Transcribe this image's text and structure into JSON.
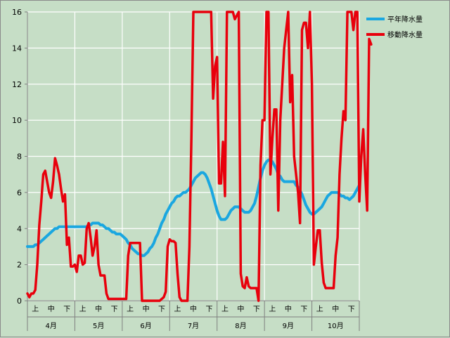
{
  "chart_data": {
    "type": "line",
    "ylim": [
      0,
      16
    ],
    "yticks": [
      0,
      2,
      4,
      6,
      8,
      10,
      12,
      14,
      16
    ],
    "grid": true,
    "legend_position": "right",
    "dekad_labels": [
      "上",
      "中",
      "下"
    ],
    "months": [
      "4月",
      "5月",
      "6月",
      "7月",
      "8月",
      "9月",
      "10月"
    ],
    "series": [
      {
        "name": "平年降水量",
        "color": "#1aa7e0",
        "values": [
          3.0,
          3.0,
          3.0,
          3.0,
          3.1,
          3.1,
          3.2,
          3.3,
          3.4,
          3.5,
          3.6,
          3.7,
          3.8,
          3.9,
          4.0,
          4.0,
          4.1,
          4.1,
          4.1,
          4.1,
          4.1,
          4.1,
          4.1,
          4.1,
          4.1,
          4.1,
          4.1,
          4.1,
          4.1,
          4.1,
          4.1,
          4.2,
          4.2,
          4.3,
          4.3,
          4.3,
          4.3,
          4.2,
          4.2,
          4.1,
          4.0,
          4.0,
          3.9,
          3.8,
          3.8,
          3.7,
          3.7,
          3.7,
          3.6,
          3.5,
          3.4,
          3.2,
          3.1,
          2.9,
          2.8,
          2.7,
          2.6,
          2.6,
          2.5,
          2.5,
          2.6,
          2.7,
          2.9,
          3.0,
          3.2,
          3.5,
          3.7,
          4.0,
          4.3,
          4.5,
          4.8,
          5.0,
          5.2,
          5.4,
          5.5,
          5.7,
          5.8,
          5.8,
          5.9,
          6.0,
          6.0,
          6.1,
          6.2,
          6.4,
          6.6,
          6.8,
          6.9,
          7.0,
          7.1,
          7.1,
          7.0,
          6.8,
          6.5,
          6.2,
          5.8,
          5.4,
          5.0,
          4.7,
          4.5,
          4.5,
          4.5,
          4.6,
          4.8,
          5.0,
          5.1,
          5.2,
          5.2,
          5.2,
          5.1,
          5.0,
          4.9,
          4.9,
          4.9,
          5.0,
          5.2,
          5.4,
          5.8,
          6.3,
          6.8,
          7.2,
          7.5,
          7.7,
          7.8,
          7.8,
          7.7,
          7.5,
          7.3,
          7.0,
          6.9,
          6.7,
          6.6,
          6.6,
          6.6,
          6.6,
          6.6,
          6.6,
          6.4,
          6.3,
          6.1,
          5.9,
          5.6,
          5.3,
          5.1,
          4.9,
          4.8,
          4.8,
          4.9,
          5.0,
          5.1,
          5.2,
          5.4,
          5.6,
          5.8,
          5.9,
          6.0,
          6.0,
          6.0,
          6.0,
          5.9,
          5.8,
          5.8,
          5.7,
          5.7,
          5.6,
          5.7,
          5.8,
          6.0,
          6.2,
          6.4
        ]
      },
      {
        "name": "移動降水量",
        "color": "#e8000c",
        "values": [
          0.4,
          0.2,
          0.4,
          0.4,
          0.6,
          2.0,
          4.2,
          5.5,
          7.0,
          7.2,
          6.6,
          6.0,
          5.7,
          6.6,
          7.9,
          7.5,
          7.0,
          6.2,
          5.5,
          5.9,
          3.1,
          3.5,
          1.9,
          1.9,
          2.0,
          1.6,
          2.5,
          2.5,
          2.0,
          2.1,
          4.0,
          4.3,
          3.5,
          2.5,
          3.0,
          3.9,
          2.0,
          1.4,
          1.4,
          1.4,
          0.4,
          0.1,
          0.1,
          0.1,
          0.1,
          0.1,
          0.1,
          0.1,
          0.1,
          0.1,
          0.1,
          2.5,
          3.2,
          3.2,
          3.2,
          3.2,
          3.2,
          3.2,
          0.0,
          0.0,
          0.0,
          0.0,
          0.0,
          0.0,
          0.0,
          0.0,
          0.0,
          0.0,
          0.1,
          0.2,
          0.5,
          3.0,
          3.4,
          3.3,
          3.3,
          3.2,
          1.5,
          0.2,
          0.0,
          0.0,
          0.0,
          0.0,
          3.0,
          9.0,
          16.0,
          16.0,
          16.0,
          16.0,
          16.0,
          16.0,
          16.0,
          16.0,
          16.0,
          16.0,
          11.2,
          13.0,
          13.5,
          6.5,
          6.5,
          8.8,
          5.8,
          16.0,
          16.0,
          16.0,
          16.0,
          15.6,
          15.8,
          16.0,
          1.5,
          0.8,
          0.7,
          1.3,
          0.8,
          0.7,
          0.7,
          0.7,
          0.7,
          0.0,
          7.5,
          10.0,
          10.0,
          16.0,
          16.0,
          7.0,
          9.0,
          10.6,
          10.6,
          5.0,
          10.0,
          12.0,
          14.0,
          15.0,
          16.0,
          11.0,
          12.5,
          8.0,
          7.0,
          6.0,
          4.3,
          15.0,
          15.4,
          15.4,
          14.0,
          16.0,
          12.0,
          2.0,
          3.0,
          3.9,
          3.9,
          2.1,
          1.0,
          0.7,
          0.7,
          0.7,
          0.7,
          0.7,
          2.5,
          3.5,
          7.0,
          9.0,
          10.5,
          10.0,
          16.0,
          16.0,
          16.0,
          15.0,
          16.0,
          16.0,
          5.5,
          8.0,
          9.5,
          7.0,
          5.0,
          14.5,
          14.2
        ]
      }
    ]
  }
}
